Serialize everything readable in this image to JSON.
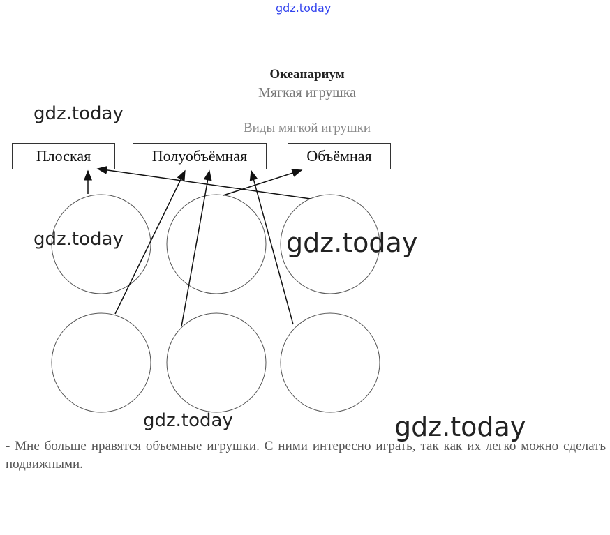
{
  "watermark": "gdz.today",
  "header": {
    "title1": "Океанариум",
    "title2": "Мягкая игрушка",
    "subtitle": "Виды мягкой игрушки"
  },
  "categories": [
    "Плоская",
    "Полуобъёмная",
    "Объёмная"
  ],
  "answer": "- Мне больше нравятся объемные игрушки. С ними интересно играть, так как их легко можно сделать подвижными."
}
